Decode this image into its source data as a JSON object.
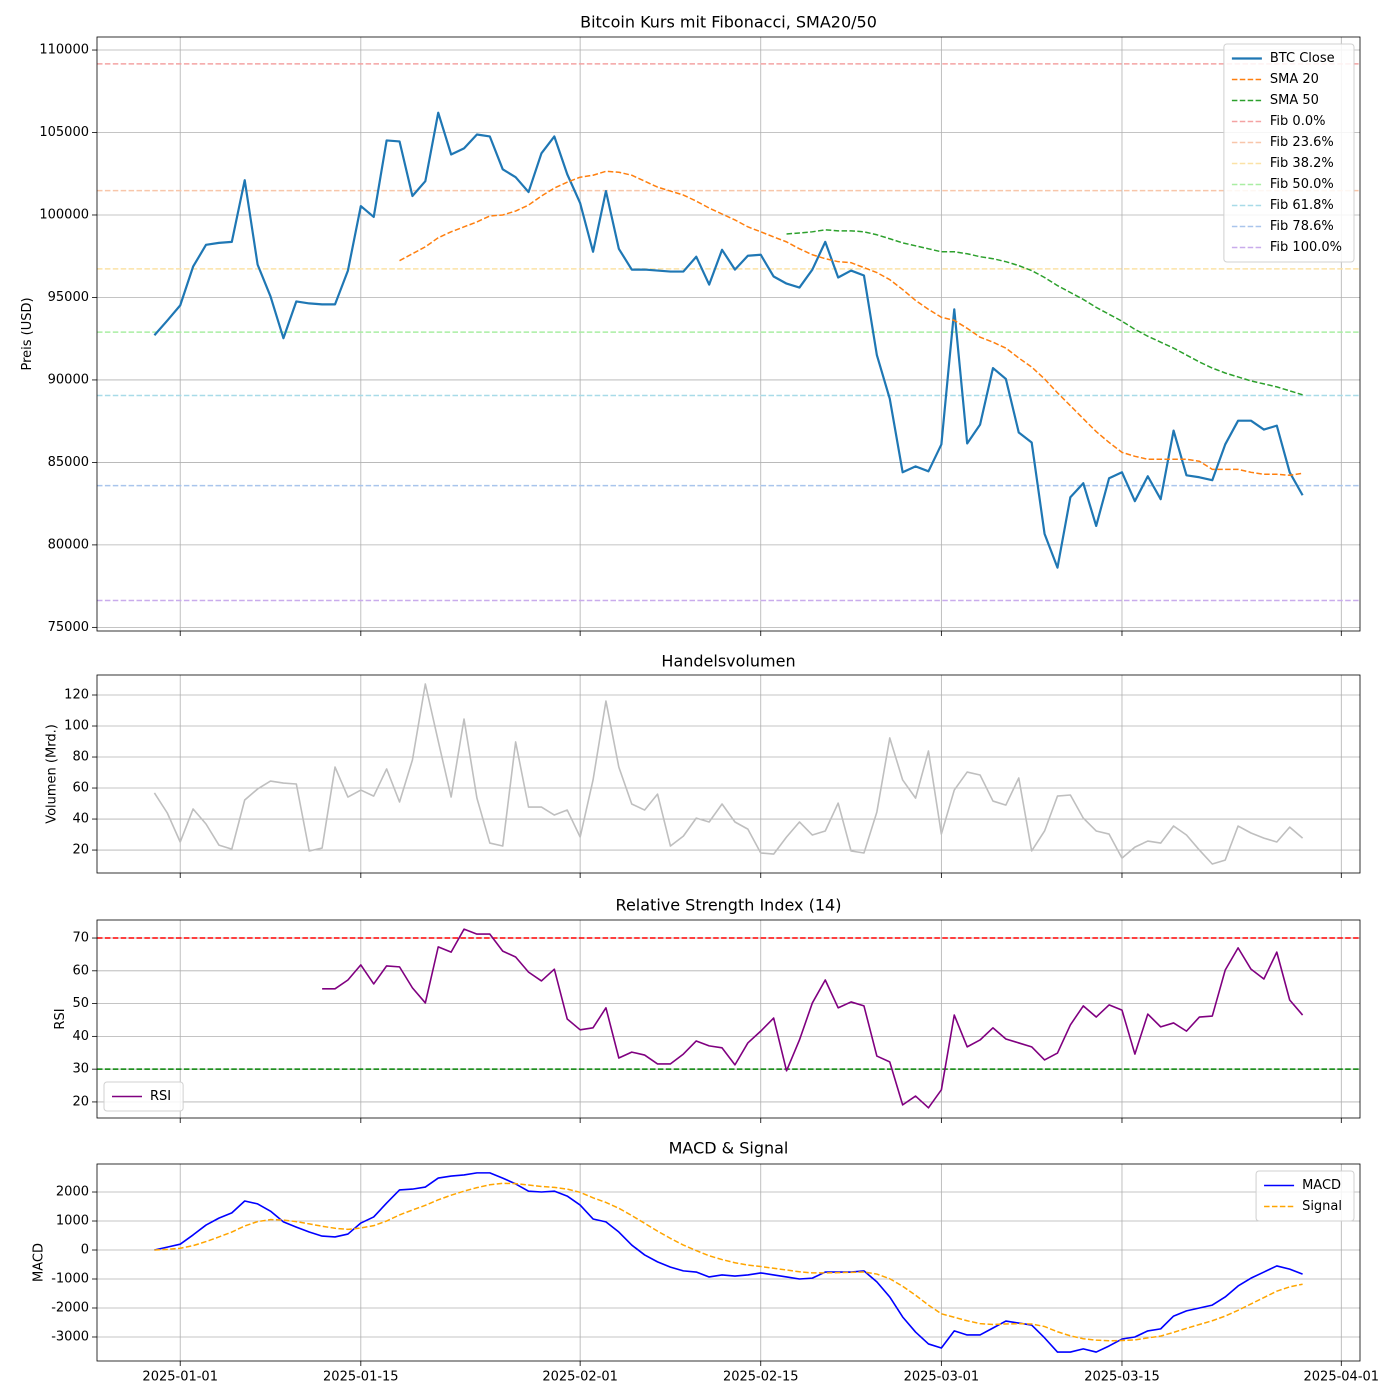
{
  "x": [
    "2024-12-30",
    "2024-12-31",
    "2025-01-01",
    "2025-01-02",
    "2025-01-03",
    "2025-01-04",
    "2025-01-05",
    "2025-01-06",
    "2025-01-07",
    "2025-01-08",
    "2025-01-09",
    "2025-01-10",
    "2025-01-11",
    "2025-01-12",
    "2025-01-13",
    "2025-01-14",
    "2025-01-15",
    "2025-01-16",
    "2025-01-17",
    "2025-01-18",
    "2025-01-19",
    "2025-01-20",
    "2025-01-21",
    "2025-01-22",
    "2025-01-23",
    "2025-01-24",
    "2025-01-25",
    "2025-01-26",
    "2025-01-27",
    "2025-01-28",
    "2025-01-29",
    "2025-01-30",
    "2025-01-31",
    "2025-02-01",
    "2025-02-02",
    "2025-02-03",
    "2025-02-04",
    "2025-02-05",
    "2025-02-06",
    "2025-02-07",
    "2025-02-08",
    "2025-02-09",
    "2025-02-10",
    "2025-02-11",
    "2025-02-12",
    "2025-02-13",
    "2025-02-14",
    "2025-02-15",
    "2025-02-16",
    "2025-02-17",
    "2025-02-18",
    "2025-02-19",
    "2025-02-20",
    "2025-02-21",
    "2025-02-22",
    "2025-02-23",
    "2025-02-24",
    "2025-02-25",
    "2025-02-26",
    "2025-02-27",
    "2025-02-28",
    "2025-03-01",
    "2025-03-02",
    "2025-03-03",
    "2025-03-04",
    "2025-03-05",
    "2025-03-06",
    "2025-03-07",
    "2025-03-08",
    "2025-03-09",
    "2025-03-10",
    "2025-03-11",
    "2025-03-12",
    "2025-03-13",
    "2025-03-14",
    "2025-03-15",
    "2025-03-16",
    "2025-03-17",
    "2025-03-18",
    "2025-03-19",
    "2025-03-20",
    "2025-03-21",
    "2025-03-22",
    "2025-03-23",
    "2025-03-24",
    "2025-03-25",
    "2025-03-26",
    "2025-03-27",
    "2025-03-28",
    "2025-03-29"
  ],
  "xlim": [
    "2024-12-25T13:12",
    "2025-04-02T10:48"
  ],
  "xticks": [
    "2025-01-01",
    "2025-01-15",
    "2025-02-01",
    "2025-02-15",
    "2025-03-01",
    "2025-03-15",
    "2025-04-01"
  ],
  "chart_data": [
    {
      "type": "line",
      "title": "Bitcoin Kurs mit Fibonacci, SMA20/50",
      "ylabel": "Preis (USD)",
      "grid": true,
      "legend": "upper right",
      "ylim": [
        74780,
        110790
      ],
      "yticks": [
        75000,
        80000,
        85000,
        90000,
        95000,
        100000,
        105000,
        110000
      ],
      "series": [
        {
          "name": "BTC Close",
          "color": "#1f77b4",
          "style": "solid",
          "values": [
            92710,
            93600,
            94520,
            96870,
            98190,
            98310,
            98370,
            102110,
            96990,
            95060,
            92530,
            94760,
            94640,
            94580,
            94580,
            96630,
            100540,
            99880,
            104520,
            104460,
            101150,
            102050,
            106200,
            103670,
            104040,
            104880,
            104760,
            102770,
            102290,
            101390,
            103740,
            104760,
            102470,
            100720,
            97770,
            101450,
            97950,
            96690,
            96690,
            96630,
            96570,
            96570,
            97470,
            95780,
            97890,
            96690,
            97530,
            97590,
            96270,
            95840,
            95600,
            96690,
            98370,
            96210,
            96630,
            96330,
            91510,
            88860,
            84400,
            84760,
            84460,
            86090,
            94280,
            86150,
            87290,
            90720,
            90060,
            86810,
            86210,
            80670,
            78620,
            82890,
            83740,
            81150,
            84040,
            84400,
            82650,
            84160,
            82770,
            86930,
            84220,
            84100,
            83920,
            86090,
            87530,
            87530,
            86990,
            87230,
            84400,
            83010
          ]
        },
        {
          "name": "SMA 20",
          "color": "#ff7f0e",
          "style": "dashed",
          "values": [
            null,
            null,
            null,
            null,
            null,
            null,
            null,
            null,
            null,
            null,
            null,
            null,
            null,
            null,
            null,
            null,
            null,
            null,
            null,
            97230,
            97650,
            98070,
            98620,
            98980,
            99280,
            99580,
            99940,
            100000,
            100240,
            100600,
            101150,
            101630,
            101990,
            102290,
            102410,
            102650,
            102590,
            102410,
            102050,
            101690,
            101450,
            101210,
            100840,
            100420,
            100060,
            99700,
            99280,
            98980,
            98670,
            98370,
            97950,
            97590,
            97350,
            97170,
            97110,
            96810,
            96510,
            96080,
            95480,
            94820,
            94280,
            93800,
            93610,
            93130,
            92590,
            92290,
            91930,
            91330,
            90780,
            90060,
            89220,
            88440,
            87650,
            86870,
            86210,
            85610,
            85370,
            85190,
            85190,
            85190,
            85190,
            85070,
            84580,
            84580,
            84580,
            84400,
            84280,
            84280,
            84220,
            84340
          ]
        },
        {
          "name": "SMA 50",
          "color": "#2ca02c",
          "style": "dashed",
          "values": [
            null,
            null,
            null,
            null,
            null,
            null,
            null,
            null,
            null,
            null,
            null,
            null,
            null,
            null,
            null,
            null,
            null,
            null,
            null,
            null,
            null,
            null,
            null,
            null,
            null,
            null,
            null,
            null,
            null,
            null,
            null,
            null,
            null,
            null,
            null,
            null,
            null,
            null,
            null,
            null,
            null,
            null,
            null,
            null,
            null,
            null,
            null,
            null,
            null,
            98850,
            98910,
            98980,
            99100,
            99040,
            99040,
            98980,
            98800,
            98560,
            98310,
            98130,
            97950,
            97770,
            97770,
            97650,
            97470,
            97350,
            97170,
            96930,
            96630,
            96210,
            95720,
            95300,
            94880,
            94400,
            93980,
            93560,
            93070,
            92650,
            92290,
            91930,
            91510,
            91090,
            90720,
            90420,
            90180,
            89940,
            89760,
            89580,
            89340,
            89100
          ]
        }
      ],
      "hlines": [
        {
          "name": "Fib 0.0%",
          "color": "#f4a3a3",
          "value": 109160
        },
        {
          "name": "Fib 23.6%",
          "color": "#f8c6aa",
          "value": 101480
        },
        {
          "name": "Fib 38.2%",
          "color": "#fbe2a6",
          "value": 96730
        },
        {
          "name": "Fib 50.0%",
          "color": "#a9eea3",
          "value": 92900
        },
        {
          "name": "Fib 61.8%",
          "color": "#a8dbe8",
          "value": 89060
        },
        {
          "name": "Fib 78.6%",
          "color": "#a9c5ec",
          "value": 83590
        },
        {
          "name": "Fib 100.0%",
          "color": "#c9acec",
          "value": 76630
        }
      ]
    },
    {
      "type": "line",
      "title": "Handelsvolumen",
      "ylabel": "Volumen (Mrd.)",
      "grid": true,
      "ylim": [
        5.2,
        132.9
      ],
      "yticks": [
        20,
        40,
        60,
        80,
        100,
        120
      ],
      "series": [
        {
          "color": "#bfbfbf",
          "style": "solid",
          "values": [
            56.8,
            43.9,
            25.2,
            46.5,
            36.8,
            23.2,
            20.6,
            52.3,
            59.4,
            64.5,
            63.2,
            62.6,
            19.4,
            21.3,
            73.5,
            54.2,
            58.7,
            54.8,
            72.3,
            51.0,
            78.1,
            127.1,
            90.3,
            54.2,
            104.5,
            53.5,
            24.5,
            22.6,
            89.7,
            47.7,
            47.7,
            42.6,
            45.8,
            28.4,
            65.2,
            116.1,
            73.5,
            49.7,
            45.8,
            56.1,
            22.6,
            29.0,
            40.6,
            38.1,
            49.7,
            38.1,
            33.5,
            18.1,
            17.4,
            28.4,
            38.1,
            29.7,
            32.3,
            50.3,
            19.4,
            18.1,
            44.5,
            92.3,
            65.2,
            53.5,
            83.9,
            30.3,
            58.7,
            70.3,
            68.4,
            51.6,
            49.0,
            66.5,
            19.4,
            32.3,
            54.8,
            55.5,
            40.6,
            32.3,
            30.3,
            14.8,
            21.9,
            25.8,
            24.5,
            35.5,
            29.7,
            20.0,
            11.0,
            13.5,
            35.5,
            31.0,
            27.7,
            25.2,
            34.8,
            27.7
          ]
        }
      ]
    },
    {
      "type": "line",
      "title": "Relative Strength Index (14)",
      "ylabel": "RSI",
      "grid": true,
      "legend": "lower left",
      "ylim": [
        15.1,
        75.5
      ],
      "yticks": [
        20,
        30,
        40,
        50,
        60,
        70
      ],
      "series": [
        {
          "name": "RSI",
          "color": "#800080",
          "style": "solid",
          "values": [
            null,
            null,
            null,
            null,
            null,
            null,
            null,
            null,
            null,
            null,
            null,
            null,
            null,
            54.5,
            54.5,
            57.2,
            61.8,
            56.0,
            61.5,
            61.2,
            54.8,
            50.2,
            67.3,
            65.7,
            72.7,
            71.2,
            71.2,
            66.0,
            64.2,
            59.6,
            56.9,
            60.5,
            45.3,
            42.0,
            42.6,
            48.7,
            33.4,
            35.2,
            34.3,
            31.6,
            31.6,
            34.6,
            38.6,
            37.1,
            36.5,
            31.3,
            38.0,
            41.6,
            45.6,
            29.5,
            38.9,
            50.2,
            57.2,
            48.7,
            50.5,
            49.3,
            34.0,
            32.2,
            19.1,
            21.8,
            18.2,
            23.7,
            46.5,
            36.8,
            38.9,
            42.6,
            39.2,
            38.0,
            36.8,
            32.8,
            34.9,
            43.5,
            49.3,
            45.9,
            49.6,
            48.0,
            34.6,
            46.8,
            42.9,
            44.1,
            41.6,
            45.9,
            46.2,
            60.2,
            67.0,
            60.5,
            57.5,
            65.7,
            51.1,
            46.5
          ]
        }
      ],
      "hlines": [
        {
          "color": "#ff0000",
          "value": 70
        },
        {
          "color": "#008000",
          "value": 30
        }
      ]
    },
    {
      "type": "line",
      "title": "MACD & Signal",
      "ylabel": "MACD",
      "grid": true,
      "legend": "upper right",
      "ylim": [
        -3828,
        2966
      ],
      "yticks": [
        -3000,
        -2000,
        -1000,
        0,
        1000,
        2000
      ],
      "series": [
        {
          "name": "MACD",
          "color": "#0000ff",
          "style": "solid",
          "values": [
            0,
            100,
            200,
            520,
            860,
            1100,
            1280,
            1690,
            1590,
            1340,
            970,
            790,
            620,
            480,
            450,
            550,
            930,
            1140,
            1620,
            2070,
            2100,
            2170,
            2480,
            2550,
            2590,
            2660,
            2660,
            2480,
            2280,
            2030,
            2000,
            2030,
            1860,
            1550,
            1070,
            970,
            620,
            170,
            -170,
            -410,
            -590,
            -720,
            -760,
            -930,
            -860,
            -900,
            -860,
            -790,
            -860,
            -930,
            -1000,
            -970,
            -760,
            -760,
            -760,
            -720,
            -1100,
            -1620,
            -2310,
            -2830,
            -3240,
            -3380,
            -2790,
            -2930,
            -2930,
            -2690,
            -2450,
            -2520,
            -2590,
            -3030,
            -3520,
            -3520,
            -3410,
            -3520,
            -3310,
            -3070,
            -3000,
            -2790,
            -2720,
            -2280,
            -2100,
            -2000,
            -1900,
            -1620,
            -1240,
            -970,
            -760,
            -550,
            -660,
            -830
          ]
        },
        {
          "name": "Signal",
          "color": "#ffa500",
          "style": "dashed",
          "values": [
            0,
            20,
            60,
            150,
            290,
            450,
            620,
            830,
            980,
            1050,
            1030,
            980,
            900,
            820,
            750,
            710,
            760,
            840,
            1000,
            1210,
            1380,
            1540,
            1730,
            1890,
            2030,
            2150,
            2250,
            2300,
            2290,
            2240,
            2190,
            2160,
            2100,
            1990,
            1800,
            1640,
            1440,
            1190,
            920,
            650,
            400,
            170,
            -20,
            -200,
            -330,
            -440,
            -520,
            -570,
            -630,
            -690,
            -750,
            -790,
            -790,
            -780,
            -770,
            -760,
            -830,
            -990,
            -1250,
            -1560,
            -1900,
            -2200,
            -2320,
            -2440,
            -2540,
            -2570,
            -2550,
            -2540,
            -2550,
            -2640,
            -2820,
            -2960,
            -3060,
            -3110,
            -3130,
            -3120,
            -3100,
            -3030,
            -2970,
            -2840,
            -2700,
            -2570,
            -2440,
            -2280,
            -2080,
            -1860,
            -1640,
            -1420,
            -1270,
            -1180
          ]
        }
      ]
    }
  ]
}
